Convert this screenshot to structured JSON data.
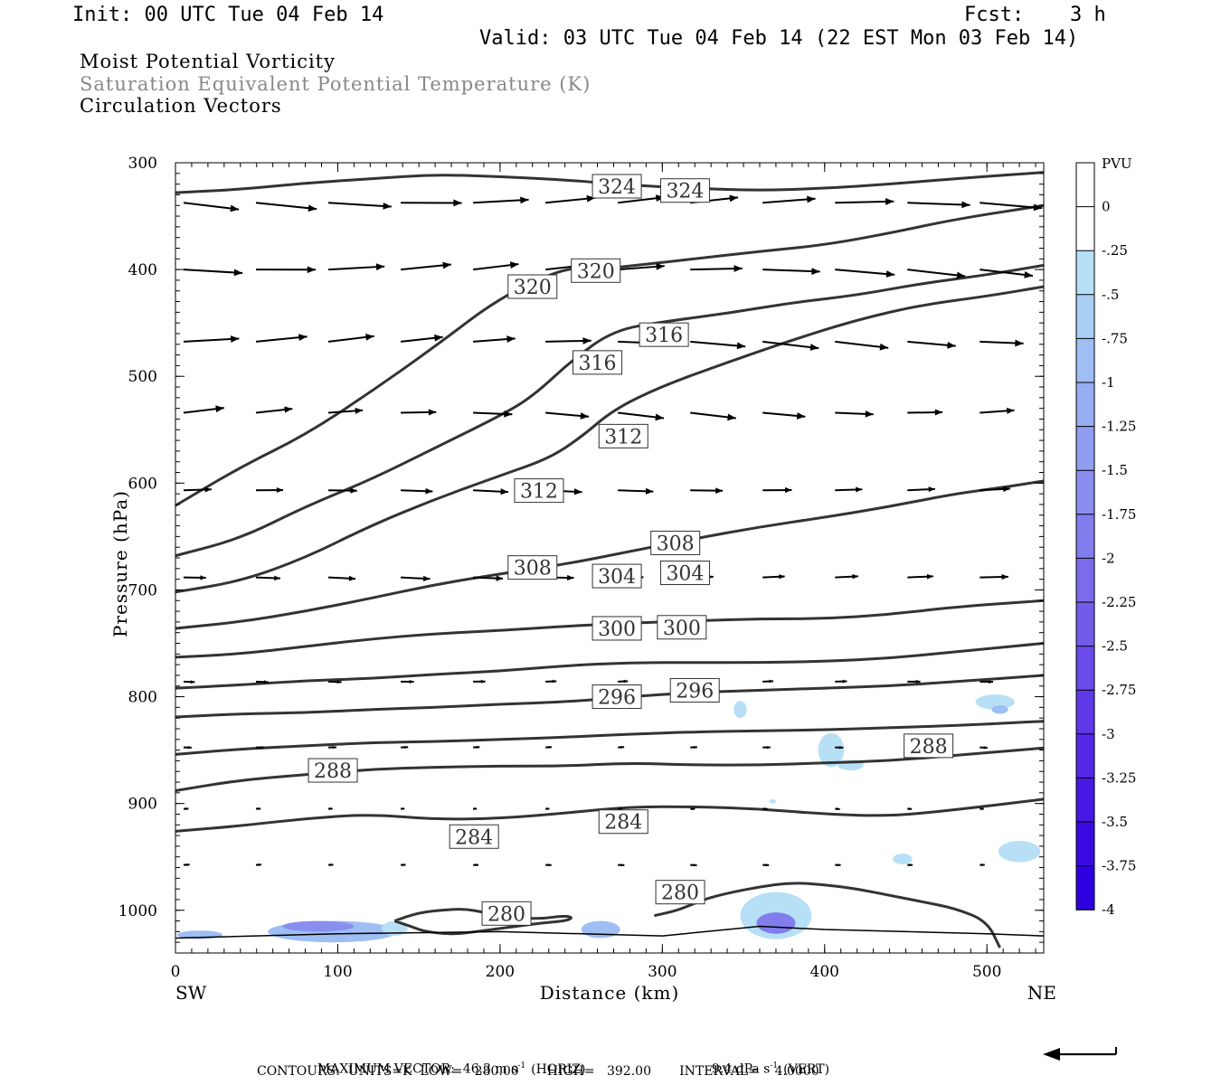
{
  "header": {
    "init": "Init: 00 UTC Tue 04 Feb 14",
    "fcst_label": "Fcst:",
    "fcst_value": "3 h",
    "valid": "Valid: 03 UTC Tue 04 Feb 14 (22 EST Mon 03 Feb 14)"
  },
  "titles": {
    "line1": "Moist Potential Vorticity",
    "line2": "Saturation Equivalent Potential Temperature (K)",
    "line3": "Circulation Vectors"
  },
  "colors": {
    "contour": "#333333",
    "vector": "#000000",
    "axis": "#000000",
    "pv_scale": [
      "#ffffff",
      "#ffffff",
      "#b7e0f7",
      "#a9cff5",
      "#9fbef3",
      "#98aef2",
      "#909ef0",
      "#8a8eef",
      "#827ded",
      "#7b6cec",
      "#735bea",
      "#6a4ae9",
      "#5f38e7",
      "#5428e6",
      "#4818e4",
      "#3a0ae2",
      "#2e00e0"
    ]
  },
  "colorbar": {
    "title": "PVU",
    "labels": [
      "0",
      "-.25",
      "-.5",
      "-.75",
      "-1",
      "-1.25",
      "-1.5",
      "-1.75",
      "-2",
      "-2.25",
      "-2.5",
      "-2.75",
      "-3",
      "-3.25",
      "-3.5",
      "-3.75",
      "-4"
    ]
  },
  "chart_data": {
    "type": "line",
    "xlabel": "Distance (km)",
    "ylabel": "Pressure (hPa)",
    "xlim": [
      0,
      535
    ],
    "ylim": [
      1040,
      300
    ],
    "xticks": [
      "0",
      "100",
      "200",
      "300",
      "400",
      "500"
    ],
    "yticks": [
      "300",
      "400",
      "500",
      "600",
      "700",
      "800",
      "900",
      "1000"
    ],
    "x_left_label": "SW",
    "x_right_label": "NE",
    "contour_labels": [
      {
        "text": "324",
        "x": 272,
        "p": 322
      },
      {
        "text": "324",
        "x": 314,
        "p": 326
      },
      {
        "text": "320",
        "x": 220,
        "p": 416
      },
      {
        "text": "320",
        "x": 259,
        "p": 401
      },
      {
        "text": "316",
        "x": 301,
        "p": 461
      },
      {
        "text": "316",
        "x": 260,
        "p": 487
      },
      {
        "text": "312",
        "x": 276,
        "p": 556
      },
      {
        "text": "312",
        "x": 224,
        "p": 607
      },
      {
        "text": "308",
        "x": 308,
        "p": 656
      },
      {
        "text": "308",
        "x": 220,
        "p": 679
      },
      {
        "text": "304",
        "x": 272,
        "p": 687
      },
      {
        "text": "304",
        "x": 314,
        "p": 684
      },
      {
        "text": "300",
        "x": 272,
        "p": 736
      },
      {
        "text": "300",
        "x": 312,
        "p": 735
      },
      {
        "text": "296",
        "x": 272,
        "p": 800
      },
      {
        "text": "296",
        "x": 320,
        "p": 794
      },
      {
        "text": "288",
        "x": 464,
        "p": 846
      },
      {
        "text": "288",
        "x": 97,
        "p": 869
      },
      {
        "text": "284",
        "x": 276,
        "p": 917
      },
      {
        "text": "284",
        "x": 184,
        "p": 931
      },
      {
        "text": "280",
        "x": 311,
        "p": 983
      },
      {
        "text": "280",
        "x": 204,
        "p": 1003
      }
    ],
    "series": [
      {
        "name": "324",
        "x": [
          0,
          40,
          80,
          120,
          160,
          200,
          240,
          280,
          320,
          360,
          400,
          440,
          480,
          535
        ],
        "y": [
          328,
          325,
          319,
          315,
          311,
          313,
          316,
          321,
          324,
          326,
          324,
          320,
          315,
          309
        ]
      },
      {
        "name": "320",
        "x": [
          0,
          40,
          80,
          120,
          160,
          200,
          240,
          260,
          290,
          320,
          360,
          400,
          440,
          480,
          535
        ],
        "y": [
          621,
          585,
          555,
          515,
          472,
          426,
          398,
          400,
          395,
          390,
          383,
          377,
          366,
          353,
          340
        ]
      },
      {
        "name": "316",
        "x": [
          0,
          40,
          80,
          120,
          160,
          200,
          220,
          245,
          270,
          300,
          340,
          380,
          420,
          460,
          500,
          535
        ],
        "y": [
          668,
          652,
          622,
          597,
          567,
          537,
          519,
          484,
          457,
          449,
          441,
          431,
          424,
          413,
          405,
          396
        ]
      },
      {
        "name": "312",
        "x": [
          0,
          40,
          80,
          120,
          160,
          200,
          230,
          250,
          270,
          300,
          340,
          380,
          420,
          460,
          500,
          535
        ],
        "y": [
          702,
          692,
          670,
          640,
          615,
          593,
          577,
          557,
          531,
          509,
          487,
          466,
          447,
          433,
          425,
          416
        ]
      },
      {
        "name": "308",
        "x": [
          0,
          40,
          80,
          120,
          160,
          200,
          240,
          280,
          320,
          360,
          400,
          440,
          480,
          510,
          535
        ],
        "y": [
          736,
          730,
          720,
          708,
          695,
          685,
          676,
          664,
          652,
          641,
          632,
          622,
          610,
          604,
          598
        ]
      },
      {
        "name": "304",
        "x": [
          0,
          40,
          80,
          120,
          160,
          200,
          240,
          280,
          320,
          360,
          400,
          440,
          480,
          535
        ],
        "y": [
          763,
          760,
          753,
          746,
          741,
          738,
          734,
          731,
          729,
          727,
          727,
          723,
          716,
          710
        ]
      },
      {
        "name": "300",
        "x": [
          0,
          40,
          80,
          120,
          160,
          200,
          240,
          280,
          320,
          360,
          400,
          440,
          480,
          535
        ],
        "y": [
          792,
          789,
          785,
          783,
          779,
          776,
          771,
          768,
          768,
          768,
          767,
          764,
          758,
          750
        ]
      },
      {
        "name": "296",
        "x": [
          0,
          40,
          80,
          120,
          160,
          200,
          240,
          280,
          320,
          360,
          400,
          440,
          480,
          535
        ],
        "y": [
          819,
          816,
          815,
          812,
          810,
          807,
          805,
          800,
          796,
          794,
          792,
          790,
          786,
          780
        ]
      },
      {
        "name": "292",
        "x": [
          0,
          40,
          80,
          120,
          160,
          200,
          240,
          280,
          320,
          360,
          400,
          440,
          480,
          535
        ],
        "y": [
          854,
          849,
          846,
          843,
          842,
          840,
          838,
          835,
          833,
          832,
          831,
          829,
          827,
          823
        ]
      },
      {
        "name": "288",
        "x": [
          0,
          40,
          80,
          120,
          160,
          200,
          240,
          280,
          320,
          360,
          400,
          440,
          480,
          535
        ],
        "y": [
          888,
          878,
          873,
          868,
          866,
          865,
          865,
          862,
          864,
          864,
          862,
          860,
          855,
          848
        ]
      },
      {
        "name": "284",
        "x": [
          0,
          40,
          80,
          120,
          160,
          200,
          240,
          280,
          320,
          360,
          400,
          440,
          480,
          535
        ],
        "y": [
          926,
          921,
          914,
          910,
          915,
          914,
          909,
          903,
          903,
          905,
          910,
          912,
          906,
          896
        ]
      },
      {
        "name": "280a",
        "x": [
          135,
          150,
          170,
          180,
          190,
          200,
          210,
          225,
          240,
          245,
          240,
          225,
          210,
          195,
          185,
          175,
          165,
          155,
          150,
          145,
          135
        ],
        "y": [
          1010,
          1002,
          999,
          999,
          1002,
          1005,
          1007,
          1008,
          1005,
          1007,
          1010,
          1012,
          1015,
          1018,
          1020,
          1022,
          1022,
          1020,
          1018,
          1015,
          1010
        ]
      },
      {
        "name": "280b",
        "x": [
          295,
          310,
          325,
          340,
          360,
          380,
          400,
          420,
          440,
          460,
          480,
          500,
          508
        ],
        "y": [
          1005,
          1000,
          990,
          984,
          978,
          974,
          976,
          980,
          986,
          992,
          998,
          1010,
          1035
        ]
      }
    ],
    "vectors": {
      "max_horiz": "46.3 m s",
      "max_horiz_unit": "-1",
      "max_horiz_tag": "(HORIZ)",
      "max_vert": "9.4 dPa s",
      "max_vert_unit": "-1",
      "max_vert_tag": "(VERT)"
    }
  },
  "footer": {
    "max_vector": "MAXIMUM VECTOR:  46.3 m s",
    "contours": "CONTOURS:  UNITS=K  LOW=   280.00       HIGH=   392.00       INTERVAL=    4.0000"
  }
}
